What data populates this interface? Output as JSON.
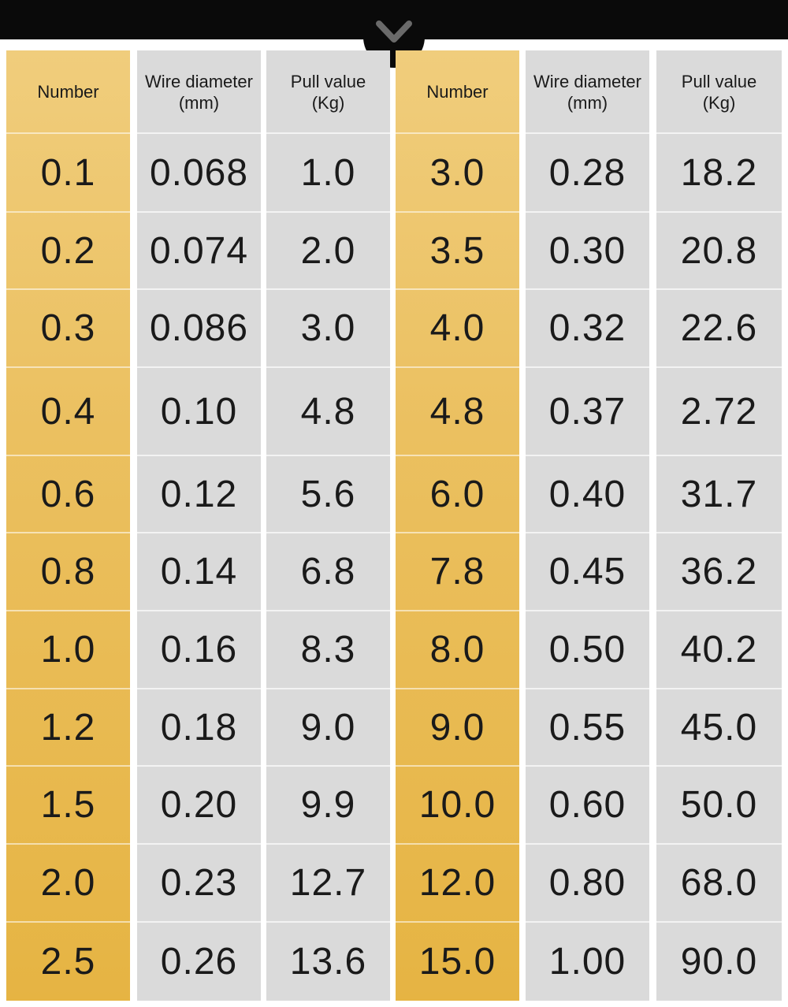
{
  "headers": [
    "Number",
    "Wire diameter\n(mm)",
    "Pull value\n(Kg)",
    "Number",
    "Wire diameter\n(mm)",
    "Pull value\n(Kg)"
  ],
  "rows": [
    [
      "0.1",
      "0.068",
      "1.0",
      "3.0",
      "0.28",
      "18.2"
    ],
    [
      "0.2",
      "0.074",
      "2.0",
      "3.5",
      "0.30",
      "20.8"
    ],
    [
      "0.3",
      "0.086",
      "3.0",
      "4.0",
      "0.32",
      "22.6"
    ],
    [
      "0.4",
      "0.10",
      "4.8",
      "4.8",
      "0.37",
      "2.72"
    ],
    [
      "0.6",
      "0.12",
      "5.6",
      "6.0",
      "0.40",
      "31.7"
    ],
    [
      "0.8",
      "0.14",
      "6.8",
      "7.8",
      "0.45",
      "36.2"
    ],
    [
      "1.0",
      "0.16",
      "8.3",
      "8.0",
      "0.50",
      "40.2"
    ],
    [
      "1.2",
      "0.18",
      "9.0",
      "9.0",
      "0.55",
      "45.0"
    ],
    [
      "1.5",
      "0.20",
      "9.9",
      "10.0",
      "0.60",
      "50.0"
    ],
    [
      "2.0",
      "0.23",
      "12.7",
      "12.0",
      "0.80",
      "68.0"
    ],
    [
      "2.5",
      "0.26",
      "13.6",
      "15.0",
      "1.00",
      "90.0"
    ]
  ],
  "icons": {
    "scroll": "chevron-down-icon"
  },
  "colors": {
    "gold": "#ebc060",
    "grey": "#dadada",
    "bar": "#0a0a0a",
    "text": "#1a1a1a"
  }
}
